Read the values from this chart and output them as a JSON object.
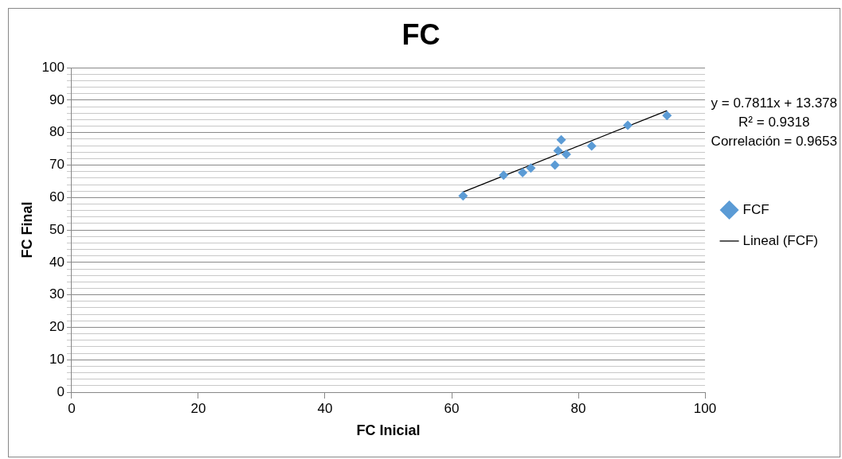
{
  "chart_data": {
    "type": "scatter",
    "title": "FC",
    "xlabel": "FC Inicial",
    "ylabel": "FC Final",
    "xlim": [
      0,
      100
    ],
    "xticks": [
      0,
      20,
      40,
      60,
      80,
      100
    ],
    "ylim": [
      0,
      100
    ],
    "yticks": [
      0,
      {
        "value": 2,
        "label": null
      },
      {
        "value": 4,
        "label": null
      },
      {
        "value": 6,
        "label": null
      },
      {
        "value": 8,
        "label": null
      },
      10,
      {
        "value": 12,
        "label": null
      },
      {
        "value": 14,
        "label": null
      },
      {
        "value": 16,
        "label": null
      },
      {
        "value": 18,
        "label": null
      },
      20,
      {
        "value": 22,
        "label": null
      },
      {
        "value": 24,
        "label": null
      },
      {
        "value": 26,
        "label": null
      },
      {
        "value": 28,
        "label": null
      },
      30,
      {
        "value": 32,
        "label": null
      },
      {
        "value": 34,
        "label": null
      },
      {
        "value": 36,
        "label": null
      },
      {
        "value": 38,
        "label": null
      },
      40,
      {
        "value": 42,
        "label": null
      },
      {
        "value": 44,
        "label": null
      },
      {
        "value": 46,
        "label": null
      },
      {
        "value": 48,
        "label": null
      },
      50,
      {
        "value": 52,
        "label": null
      },
      {
        "value": 54,
        "label": null
      },
      {
        "value": 56,
        "label": null
      },
      {
        "value": 58,
        "label": null
      },
      60,
      {
        "value": 62,
        "label": null
      },
      {
        "value": 64,
        "label": null
      },
      {
        "value": 66,
        "label": null
      },
      {
        "value": 68,
        "label": null
      },
      70,
      {
        "value": 72,
        "label": null
      },
      {
        "value": 74,
        "label": null
      },
      {
        "value": 76,
        "label": null
      },
      {
        "value": 78,
        "label": null
      },
      80,
      {
        "value": 82,
        "label": null
      },
      {
        "value": 84,
        "label": null
      },
      {
        "value": 86,
        "label": null
      },
      {
        "value": 88,
        "label": null
      },
      90,
      {
        "value": 92,
        "label": null
      },
      {
        "value": 94,
        "label": null
      },
      {
        "value": 96,
        "label": null
      },
      {
        "value": 98,
        "label": null
      },
      100
    ],
    "grid": "y",
    "legend": "right",
    "marker": "diamond",
    "series": [
      {
        "name": "FCF",
        "color": "#5b9bd5",
        "x": [
          61.8,
          68.2,
          71.2,
          72.5,
          76.3,
          76.8,
          77.3,
          78.1,
          82.1,
          87.8,
          94.0
        ],
        "values": [
          60.5,
          66.9,
          67.7,
          69.1,
          70.0,
          74.4,
          77.8,
          73.3,
          75.9,
          82.3,
          85.3
        ]
      },
      {
        "name": "Lineal (FCF)",
        "type": "line",
        "color": "#000000",
        "marker": "none",
        "x": [
          61.8,
          94.0
        ],
        "values": [
          61.7,
          86.8
        ]
      }
    ],
    "annotations": [
      "y = 0.7811x + 13.378",
      "R² = 0.9318",
      "Correlación = 0.9653"
    ]
  }
}
